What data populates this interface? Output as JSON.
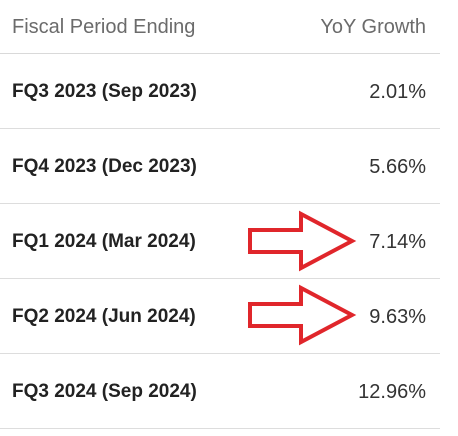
{
  "table": {
    "headers": {
      "period": "Fiscal Period Ending",
      "growth": "YoY Growth"
    },
    "rows": [
      {
        "period": "FQ3 2023 (Sep 2023)",
        "growth": "2.01%"
      },
      {
        "period": "FQ4 2023 (Dec 2023)",
        "growth": "5.66%"
      },
      {
        "period": "FQ1 2024 (Mar 2024)",
        "growth": "7.14%"
      },
      {
        "period": "FQ2 2024 (Jun 2024)",
        "growth": "9.63%"
      },
      {
        "period": "FQ3 2024 (Sep 2024)",
        "growth": "12.96%"
      }
    ]
  },
  "annotations": {
    "arrow_color": "#e0262b",
    "arrow_icon": "red-right-arrow-icon",
    "highlighted_rows": [
      "FQ1 2024 (Mar 2024)",
      "FQ2 2024 (Jun 2024)"
    ]
  }
}
